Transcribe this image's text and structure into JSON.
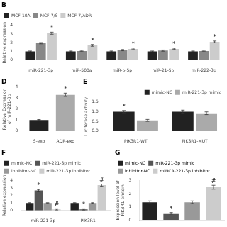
{
  "chart_data": [
    {
      "type": "bar",
      "title": "B",
      "categories": [
        "miR-221-3p",
        "miR-500a",
        "miR-b-5p",
        "miR-21-5p",
        "miR-222-3p"
      ],
      "series": [
        {
          "name": "MCF-10A",
          "color": "#222222",
          "values": [
            1.0,
            1.0,
            1.0,
            1.0,
            1.0
          ],
          "errors": [
            0.05,
            0.05,
            0.05,
            0.05,
            0.05
          ]
        },
        {
          "name": "MCF-7/S",
          "color": "#888888",
          "values": [
            1.95,
            1.05,
            1.15,
            1.1,
            1.05
          ],
          "errors": [
            0.07,
            0.07,
            0.07,
            0.07,
            0.07
          ]
        },
        {
          "name": "MCF-7/ADR",
          "color": "#cccccc",
          "values": [
            3.1,
            1.7,
            1.3,
            1.3,
            2.1
          ],
          "errors": [
            0.12,
            0.1,
            0.08,
            0.08,
            0.1
          ]
        }
      ],
      "ylabel": "Relative expression",
      "ylim": [
        0,
        4
      ],
      "yticks": [
        0,
        1,
        2,
        3,
        4
      ],
      "grid": false,
      "legend": "upper left",
      "annotations": [
        {
          "text": "*",
          "series": "MCF-7/ADR",
          "category": "miR-221-3p"
        },
        {
          "text": "*",
          "series": "MCF-7/ADR",
          "category": "miR-500a"
        },
        {
          "text": "*",
          "series": "MCF-7/ADR",
          "category": "miR-b-5p"
        },
        {
          "text": "*",
          "series": "MCF-7/ADR",
          "category": "miR-21-5p"
        },
        {
          "text": "*",
          "series": "MCF-7/ADR",
          "category": "miR-222-3p"
        }
      ]
    },
    {
      "type": "bar",
      "title": "D",
      "categories": [
        "S-exo",
        "ADR-exo"
      ],
      "values": [
        1.0,
        3.3
      ],
      "errors": [
        0.05,
        0.15
      ],
      "colors": [
        "#222222",
        "#aaaaaa"
      ],
      "ylabel": "Relative Expression\nof miR-221-3p",
      "ylim": [
        0,
        4
      ],
      "yticks": [
        0,
        1,
        2,
        3,
        4
      ],
      "grid": false,
      "annotations": [
        {
          "text": "*",
          "category": "ADR-exo"
        }
      ]
    },
    {
      "type": "bar",
      "title": "E",
      "categories": [
        "PIK3R1-WT",
        "PIK3R1-MUT"
      ],
      "series": [
        {
          "name": "mimic-NC",
          "color": "#222222",
          "values": [
            1.0,
            1.0
          ],
          "errors": [
            0.06,
            0.08
          ]
        },
        {
          "name": "miR-221-3p mimic",
          "color": "#aaaaaa",
          "values": [
            0.55,
            0.92
          ],
          "errors": [
            0.05,
            0.07
          ]
        }
      ],
      "ylabel": "Luciferase activity",
      "ylim": [
        0,
        1.5
      ],
      "yticks": [
        {
          "value": 0,
          "label": "0.0"
        },
        0.5,
        {
          "value": 1,
          "label": "1.0"
        },
        1.5
      ],
      "grid": false,
      "legend": "upper right",
      "annotations": [
        {
          "text": "*",
          "series": "mimic-NC",
          "category": "PIK3R1-WT"
        }
      ]
    },
    {
      "type": "bar",
      "title": "F",
      "categories": [
        "miR-221-3p",
        "PIK3R1"
      ],
      "series": [
        {
          "name": "mimic-NC",
          "color": "#222222",
          "values": [
            1.0,
            1.0
          ],
          "errors": [
            0.05,
            0.05
          ]
        },
        {
          "name": "miR-221-3p mimic",
          "color": "#555555",
          "values": [
            2.7,
            0.15
          ],
          "errors": [
            0.12,
            0.08
          ]
        },
        {
          "name": "inhibitor-NC",
          "color": "#999999",
          "values": [
            1.0,
            1.0
          ],
          "errors": [
            0.05,
            0.05
          ]
        },
        {
          "name": "miR-221-3p inhibitor",
          "color": "#cccccc",
          "values": [
            0.15,
            3.4
          ],
          "errors": [
            0.08,
            0.15
          ]
        }
      ],
      "ylabel": "Relative expression",
      "ylim": [
        0,
        4
      ],
      "yticks": [
        0,
        1,
        2,
        3,
        4
      ],
      "grid": false,
      "legend": "upper left",
      "annotations": [
        {
          "text": "*",
          "series": "miR-221-3p mimic",
          "category": "miR-221-3p"
        },
        {
          "text": "#",
          "series": "miR-221-3p inhibitor",
          "category": "miR-221-3p"
        },
        {
          "text": "*",
          "series": "miR-221-3p mimic",
          "category": "PIK3R1"
        },
        {
          "text": "#",
          "series": "miR-221-3p inhibitor",
          "category": "PIK3R1"
        }
      ]
    },
    {
      "type": "bar",
      "title": "G",
      "categories": [
        "mimic-NC",
        "miR-221-3p mimic",
        "inhibitor-NC",
        "miNCR-221-3p inhibitor"
      ],
      "values": [
        1.35,
        0.5,
        1.35,
        2.5
      ],
      "errors": [
        0.1,
        0.06,
        0.1,
        0.15
      ],
      "colors": [
        "#222222",
        "#555555",
        "#999999",
        "#cccccc"
      ],
      "ylabel": "Expression level of\nPIK3R1 protein",
      "ylim": [
        0,
        3
      ],
      "yticks": [
        0,
        1,
        2,
        3
      ],
      "grid": false,
      "legend": "upper left",
      "tick_labels": "y",
      "annotations": [
        {
          "text": "*",
          "category": "miR-221-3p mimic"
        },
        {
          "text": "#",
          "category": "miNCR-221-3p inhibitor"
        }
      ]
    }
  ]
}
